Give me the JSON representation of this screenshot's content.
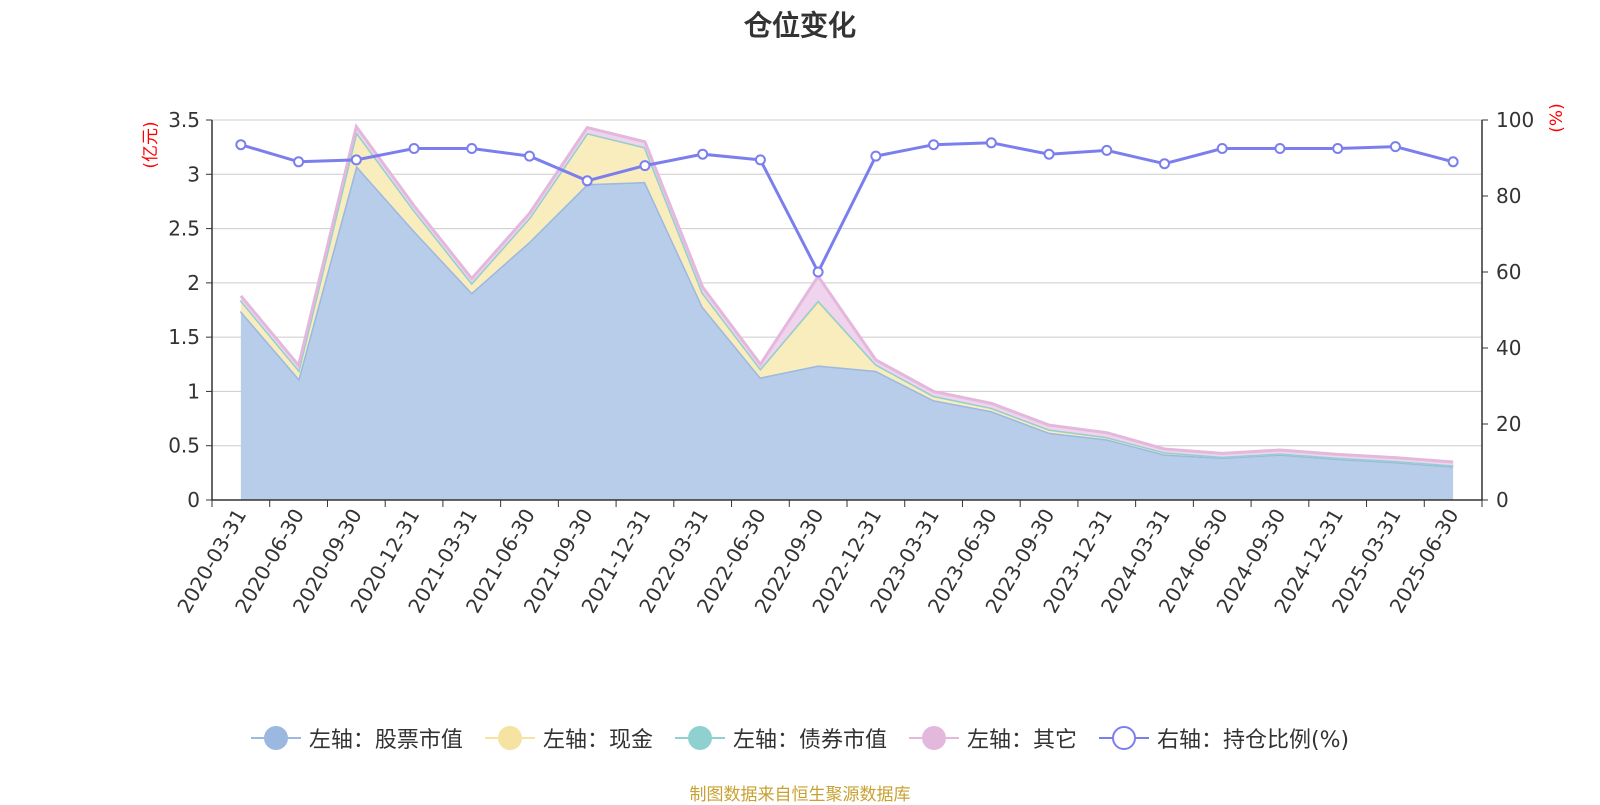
{
  "title": "仓位变化",
  "source": "制图数据来自恒生聚源数据库",
  "chart_data": {
    "type": "area",
    "categories": [
      "2020-03-31",
      "2020-06-30",
      "2020-09-30",
      "2020-12-31",
      "2021-03-31",
      "2021-06-30",
      "2021-09-30",
      "2021-12-31",
      "2022-03-31",
      "2022-06-30",
      "2022-09-30",
      "2022-12-31",
      "2023-03-31",
      "2023-06-30",
      "2023-09-30",
      "2023-12-31",
      "2024-03-31",
      "2024-06-30",
      "2024-09-30",
      "2024-12-31",
      "2025-03-31",
      "2025-06-30"
    ],
    "left_axis": {
      "unit": "(亿元)",
      "ylim": [
        0,
        3.5
      ],
      "ticks": [
        "0",
        "0.5",
        "1",
        "1.5",
        "2",
        "2.5",
        "3",
        "3.5"
      ]
    },
    "right_axis": {
      "unit": "(%)",
      "ylim": [
        0,
        100
      ],
      "ticks": [
        "0",
        "20",
        "40",
        "60",
        "80",
        "100"
      ]
    },
    "series": [
      {
        "name": "左轴：股票市值",
        "axis": "left",
        "stacked": true,
        "color": "#9bb8e0",
        "values": [
          1.74,
          1.12,
          3.08,
          2.48,
          1.91,
          2.38,
          2.91,
          2.93,
          1.78,
          1.13,
          1.24,
          1.19,
          0.92,
          0.82,
          0.62,
          0.56,
          0.42,
          0.39,
          0.42,
          0.38,
          0.35,
          0.31
        ]
      },
      {
        "name": "左轴：现金",
        "axis": "left",
        "stacked": true,
        "color": "#f6e3a1",
        "values": [
          0.1,
          0.08,
          0.31,
          0.19,
          0.09,
          0.22,
          0.47,
          0.32,
          0.13,
          0.08,
          0.59,
          0.06,
          0.04,
          0.03,
          0.03,
          0.02,
          0.02,
          0.01,
          0.01,
          0.01,
          0.01,
          0.01
        ]
      },
      {
        "name": "左轴：债券市值",
        "axis": "left",
        "stacked": true,
        "color": "#8fd1d1",
        "values": [
          0,
          0,
          0,
          0,
          0,
          0,
          0,
          0,
          0,
          0,
          0.01,
          0,
          0,
          0,
          0,
          0,
          0,
          0,
          0,
          0,
          0,
          0
        ]
      },
      {
        "name": "左轴：其它",
        "axis": "left",
        "stacked": true,
        "color": "#e4b8dc",
        "values": [
          0.04,
          0.04,
          0.05,
          0.04,
          0.04,
          0.04,
          0.05,
          0.05,
          0.05,
          0.04,
          0.22,
          0.04,
          0.04,
          0.04,
          0.04,
          0.04,
          0.03,
          0.03,
          0.03,
          0.03,
          0.03,
          0.03
        ]
      },
      {
        "name": "右轴：持仓比例(%)",
        "axis": "right",
        "stacked": false,
        "color": "#7b7fee",
        "values": [
          93.5,
          89,
          89.5,
          92.5,
          92.5,
          90.5,
          84,
          88,
          91,
          89.5,
          60,
          90.5,
          93.5,
          94,
          91,
          92,
          88.5,
          92.5,
          92.5,
          92.5,
          93,
          89
        ]
      }
    ]
  }
}
